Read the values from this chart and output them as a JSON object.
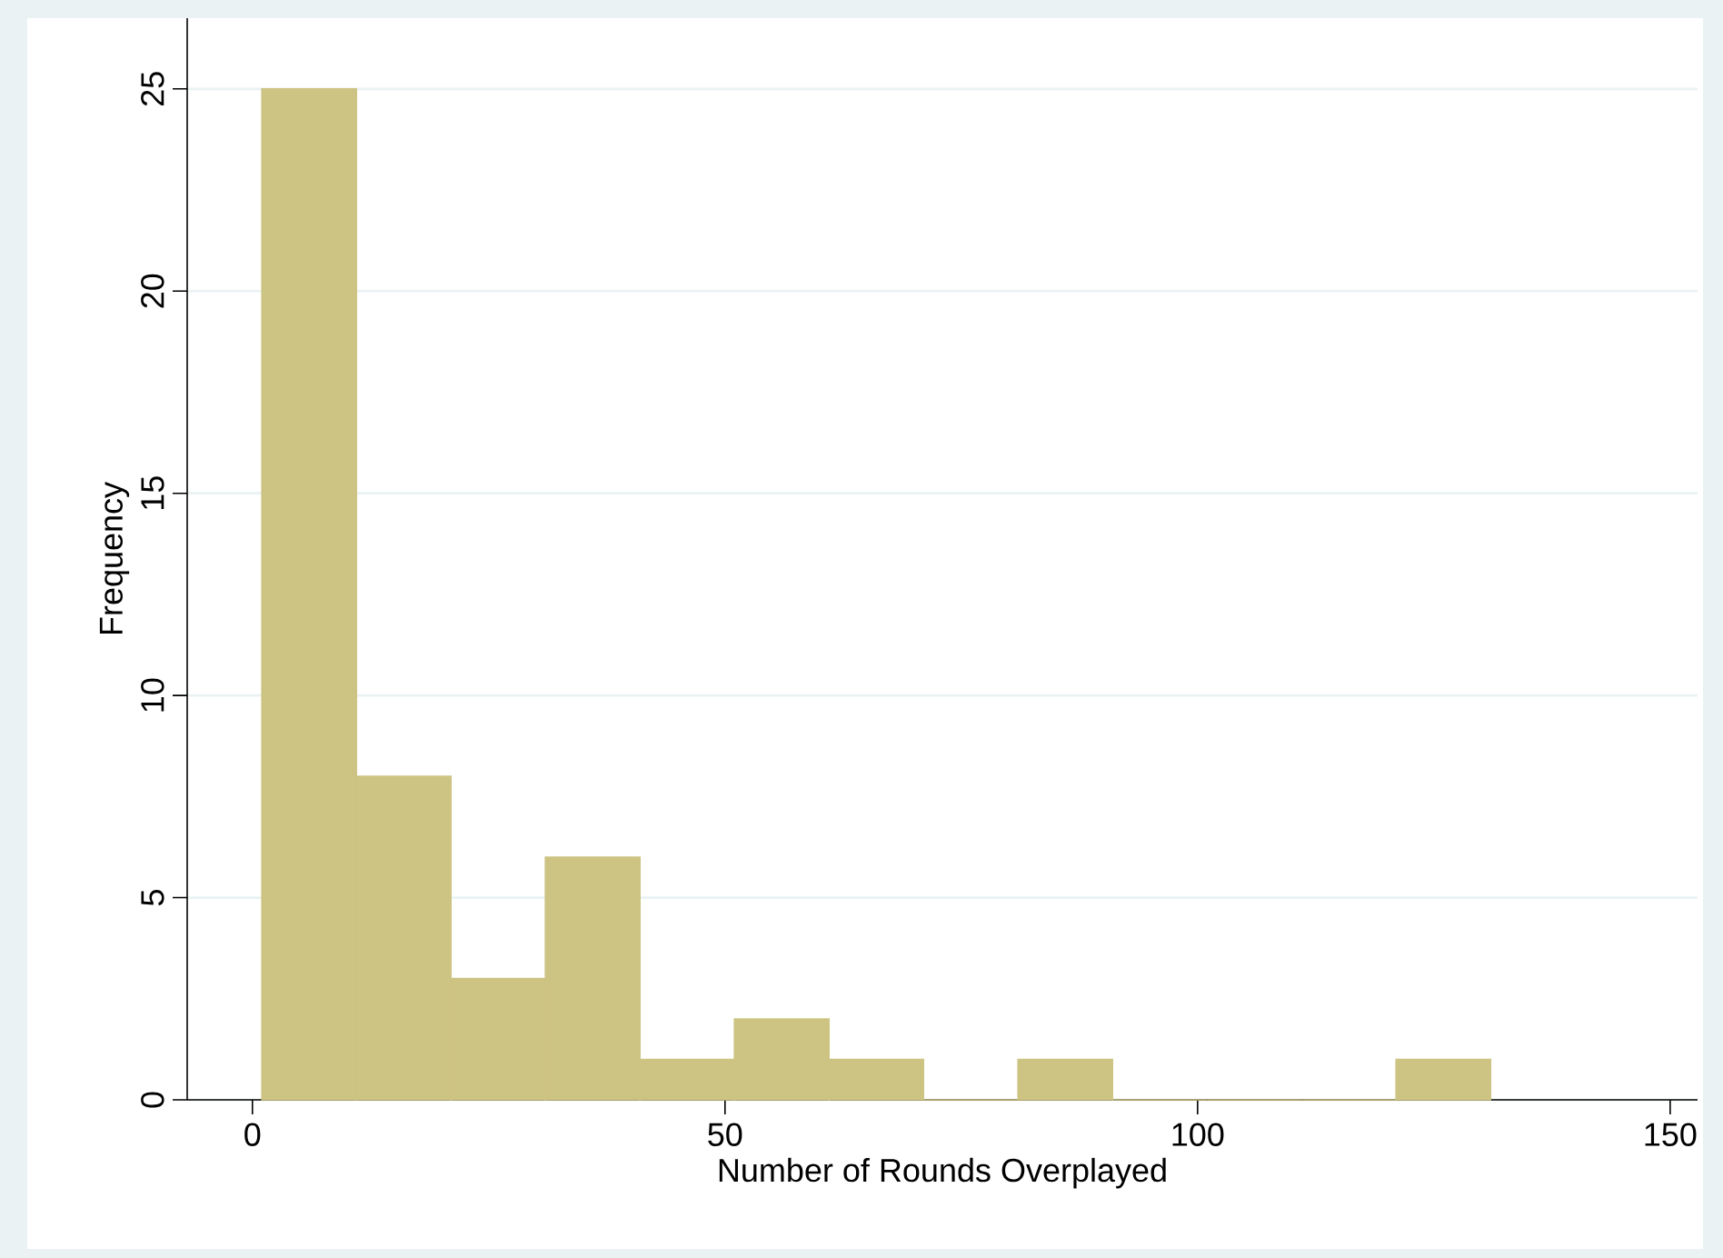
{
  "chart_data": {
    "type": "histogram",
    "xlabel": "Number of Rounds Overplayed",
    "ylabel": "Frequency",
    "bins": [
      1,
      11,
      21,
      31,
      41,
      51,
      61,
      71,
      81,
      91,
      101,
      111,
      121,
      131
    ],
    "values": [
      25,
      8,
      3,
      6,
      1,
      2,
      1,
      0,
      1,
      0,
      0,
      0,
      1
    ],
    "color": "#cdc383",
    "xlim": [
      -6.9,
      152.9
    ],
    "xticks": [
      0,
      50,
      100,
      150
    ],
    "ylim": [
      0,
      26.75
    ],
    "yticks": [
      0,
      5,
      10,
      15,
      20,
      25
    ],
    "grid": "y"
  }
}
